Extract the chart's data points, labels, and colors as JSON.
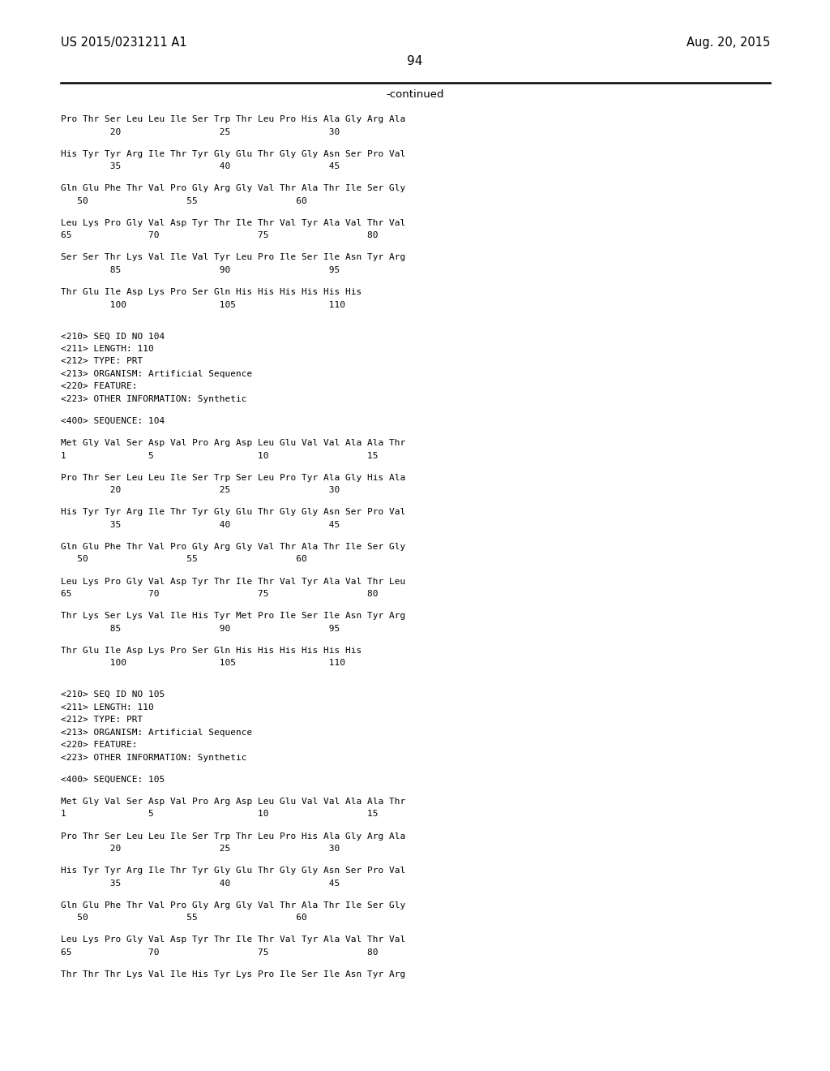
{
  "header_left": "US 2015/0231211 A1",
  "header_right": "Aug. 20, 2015",
  "page_number": "94",
  "continued_label": "-continued",
  "background_color": "#ffffff",
  "text_color": "#000000",
  "lines": [
    {
      "type": "seq",
      "text": "Pro Thr Ser Leu Leu Ile Ser Trp Thr Leu Pro His Ala Gly Arg Ala"
    },
    {
      "type": "num",
      "text": "         20                  25                  30"
    },
    {
      "type": "blank"
    },
    {
      "type": "seq",
      "text": "His Tyr Tyr Arg Ile Thr Tyr Gly Glu Thr Gly Gly Asn Ser Pro Val"
    },
    {
      "type": "num",
      "text": "         35                  40                  45"
    },
    {
      "type": "blank"
    },
    {
      "type": "seq",
      "text": "Gln Glu Phe Thr Val Pro Gly Arg Gly Val Thr Ala Thr Ile Ser Gly"
    },
    {
      "type": "num",
      "text": "   50                  55                  60"
    },
    {
      "type": "blank"
    },
    {
      "type": "seq",
      "text": "Leu Lys Pro Gly Val Asp Tyr Thr Ile Thr Val Tyr Ala Val Thr Val"
    },
    {
      "type": "num",
      "text": "65              70                  75                  80"
    },
    {
      "type": "blank"
    },
    {
      "type": "seq",
      "text": "Ser Ser Thr Lys Val Ile Val Tyr Leu Pro Ile Ser Ile Asn Tyr Arg"
    },
    {
      "type": "num",
      "text": "         85                  90                  95"
    },
    {
      "type": "blank"
    },
    {
      "type": "seq",
      "text": "Thr Glu Ile Asp Lys Pro Ser Gln His His His His His His"
    },
    {
      "type": "num",
      "text": "         100                 105                 110"
    },
    {
      "type": "blank"
    },
    {
      "type": "blank"
    },
    {
      "type": "meta",
      "text": "<210> SEQ ID NO 104"
    },
    {
      "type": "meta",
      "text": "<211> LENGTH: 110"
    },
    {
      "type": "meta",
      "text": "<212> TYPE: PRT"
    },
    {
      "type": "meta",
      "text": "<213> ORGANISM: Artificial Sequence"
    },
    {
      "type": "meta",
      "text": "<220> FEATURE:"
    },
    {
      "type": "meta",
      "text": "<223> OTHER INFORMATION: Synthetic"
    },
    {
      "type": "blank"
    },
    {
      "type": "meta",
      "text": "<400> SEQUENCE: 104"
    },
    {
      "type": "blank"
    },
    {
      "type": "seq",
      "text": "Met Gly Val Ser Asp Val Pro Arg Asp Leu Glu Val Val Ala Ala Thr"
    },
    {
      "type": "num",
      "text": "1               5                   10                  15"
    },
    {
      "type": "blank"
    },
    {
      "type": "seq",
      "text": "Pro Thr Ser Leu Leu Ile Ser Trp Ser Leu Pro Tyr Ala Gly His Ala"
    },
    {
      "type": "num",
      "text": "         20                  25                  30"
    },
    {
      "type": "blank"
    },
    {
      "type": "seq",
      "text": "His Tyr Tyr Arg Ile Thr Tyr Gly Glu Thr Gly Gly Asn Ser Pro Val"
    },
    {
      "type": "num",
      "text": "         35                  40                  45"
    },
    {
      "type": "blank"
    },
    {
      "type": "seq",
      "text": "Gln Glu Phe Thr Val Pro Gly Arg Gly Val Thr Ala Thr Ile Ser Gly"
    },
    {
      "type": "num",
      "text": "   50                  55                  60"
    },
    {
      "type": "blank"
    },
    {
      "type": "seq",
      "text": "Leu Lys Pro Gly Val Asp Tyr Thr Ile Thr Val Tyr Ala Val Thr Leu"
    },
    {
      "type": "num",
      "text": "65              70                  75                  80"
    },
    {
      "type": "blank"
    },
    {
      "type": "seq",
      "text": "Thr Lys Ser Lys Val Ile His Tyr Met Pro Ile Ser Ile Asn Tyr Arg"
    },
    {
      "type": "num",
      "text": "         85                  90                  95"
    },
    {
      "type": "blank"
    },
    {
      "type": "seq",
      "text": "Thr Glu Ile Asp Lys Pro Ser Gln His His His His His His"
    },
    {
      "type": "num",
      "text": "         100                 105                 110"
    },
    {
      "type": "blank"
    },
    {
      "type": "blank"
    },
    {
      "type": "meta",
      "text": "<210> SEQ ID NO 105"
    },
    {
      "type": "meta",
      "text": "<211> LENGTH: 110"
    },
    {
      "type": "meta",
      "text": "<212> TYPE: PRT"
    },
    {
      "type": "meta",
      "text": "<213> ORGANISM: Artificial Sequence"
    },
    {
      "type": "meta",
      "text": "<220> FEATURE:"
    },
    {
      "type": "meta",
      "text": "<223> OTHER INFORMATION: Synthetic"
    },
    {
      "type": "blank"
    },
    {
      "type": "meta",
      "text": "<400> SEQUENCE: 105"
    },
    {
      "type": "blank"
    },
    {
      "type": "seq",
      "text": "Met Gly Val Ser Asp Val Pro Arg Asp Leu Glu Val Val Ala Ala Thr"
    },
    {
      "type": "num",
      "text": "1               5                   10                  15"
    },
    {
      "type": "blank"
    },
    {
      "type": "seq",
      "text": "Pro Thr Ser Leu Leu Ile Ser Trp Thr Leu Pro His Ala Gly Arg Ala"
    },
    {
      "type": "num",
      "text": "         20                  25                  30"
    },
    {
      "type": "blank"
    },
    {
      "type": "seq",
      "text": "His Tyr Tyr Arg Ile Thr Tyr Gly Glu Thr Gly Gly Asn Ser Pro Val"
    },
    {
      "type": "num",
      "text": "         35                  40                  45"
    },
    {
      "type": "blank"
    },
    {
      "type": "seq",
      "text": "Gln Glu Phe Thr Val Pro Gly Arg Gly Val Thr Ala Thr Ile Ser Gly"
    },
    {
      "type": "num",
      "text": "   50                  55                  60"
    },
    {
      "type": "blank"
    },
    {
      "type": "seq",
      "text": "Leu Lys Pro Gly Val Asp Tyr Thr Ile Thr Val Tyr Ala Val Thr Val"
    },
    {
      "type": "num",
      "text": "65              70                  75                  80"
    },
    {
      "type": "blank"
    },
    {
      "type": "seq",
      "text": "Thr Thr Thr Lys Val Ile His Tyr Lys Pro Ile Ser Ile Asn Tyr Arg"
    }
  ]
}
